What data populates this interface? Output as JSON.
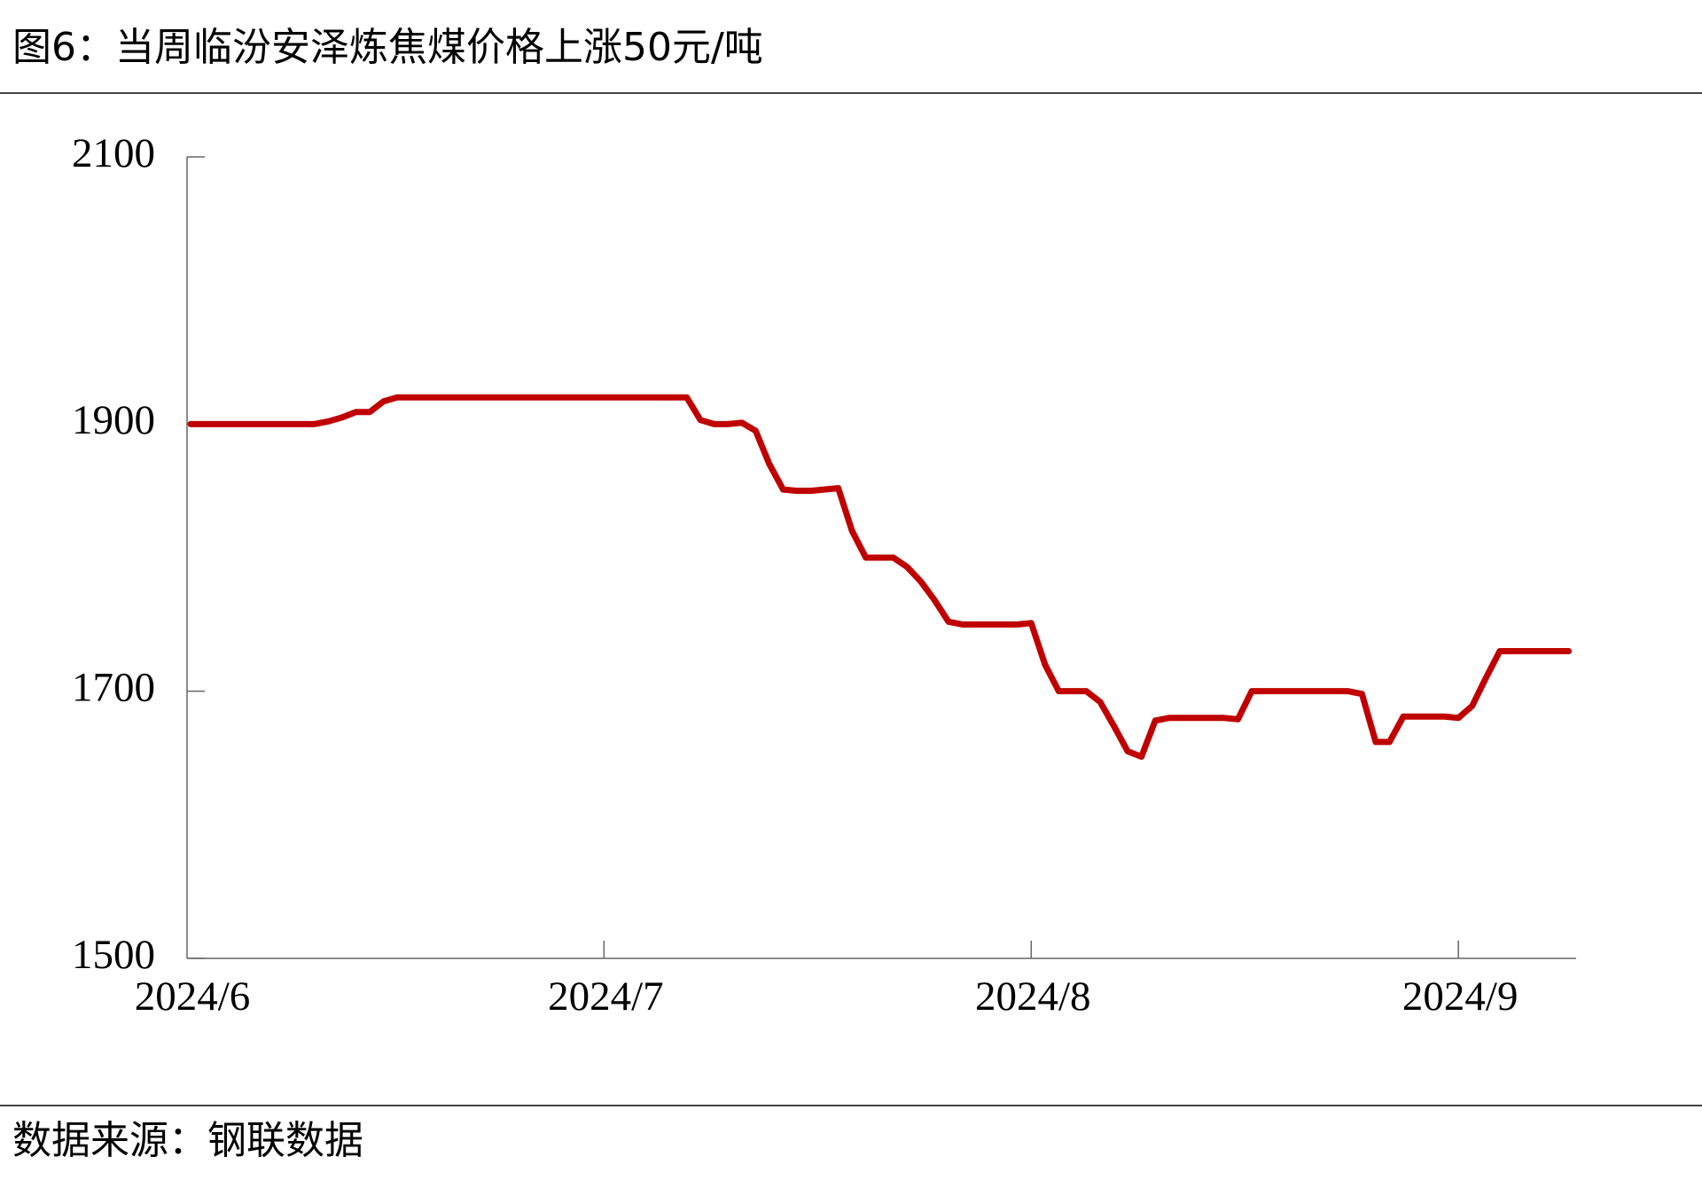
{
  "chart_data": {
    "type": "line",
    "title": "图6：当周临汾安泽炼焦煤价格上涨50元/吨",
    "source": "数据来源：钢联数据",
    "categories": [
      "2024/6",
      null,
      null,
      null,
      null,
      null,
      null,
      null,
      null,
      null,
      null,
      null,
      null,
      null,
      null,
      null,
      null,
      null,
      null,
      null,
      null,
      null,
      null,
      null,
      null,
      null,
      null,
      null,
      null,
      null,
      "2024/7",
      null,
      null,
      null,
      null,
      null,
      null,
      null,
      null,
      null,
      null,
      null,
      null,
      null,
      null,
      null,
      null,
      null,
      null,
      null,
      null,
      null,
      null,
      null,
      null,
      null,
      null,
      null,
      null,
      null,
      null,
      "2024/8",
      null,
      null,
      null,
      null,
      null,
      null,
      null,
      null,
      null,
      null,
      null,
      null,
      null,
      null,
      null,
      null,
      null,
      null,
      null,
      null,
      null,
      null,
      null,
      null,
      null,
      null,
      null,
      null,
      null,
      null,
      "2024/9",
      null,
      null,
      null,
      null,
      null,
      null,
      null,
      null
    ],
    "series": [
      {
        "color": "#c00000",
        "values": [
          1900,
          1900,
          1900,
          1900,
          1900,
          1900,
          1900,
          1900,
          1900,
          1900,
          1902,
          1905,
          1909,
          1909,
          1917,
          1920,
          1920,
          1920,
          1920,
          1920,
          1920,
          1920,
          1920,
          1920,
          1920,
          1920,
          1920,
          1920,
          1920,
          1920,
          1920,
          1920,
          1920,
          1920,
          1920,
          1920,
          1920,
          1903,
          1900,
          1900,
          1901,
          1895,
          1870,
          1851,
          1850,
          1850,
          1851,
          1852,
          1820,
          1800,
          1800,
          1800,
          1793,
          1782,
          1768,
          1752,
          1750,
          1750,
          1750,
          1750,
          1750,
          1751,
          1720,
          1700,
          1700,
          1700,
          1692,
          1674,
          1655,
          1651,
          1678,
          1680,
          1680,
          1680,
          1680,
          1680,
          1679,
          1700,
          1700,
          1700,
          1700,
          1700,
          1700,
          1700,
          1700,
          1698,
          1662,
          1662,
          1681,
          1681,
          1681,
          1681,
          1680,
          1689,
          1710,
          1730,
          1730,
          1730,
          1730,
          1730,
          1730
        ]
      }
    ],
    "ylim": [
      1500,
      2100
    ],
    "yticks": [
      1500,
      1700,
      1900,
      2100
    ]
  }
}
